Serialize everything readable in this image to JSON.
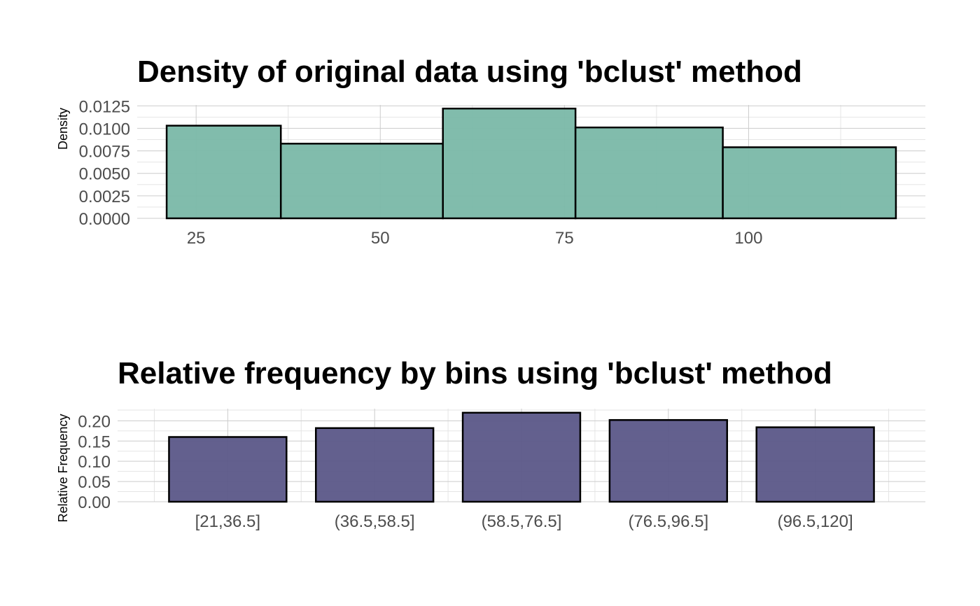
{
  "colors": {
    "density_fill": "#7ab8a8",
    "freq_fill": "#5b5788",
    "outline": "#000000"
  },
  "chart_data": [
    {
      "type": "bar",
      "title": "Density of original data using 'bclust' method",
      "xlabel": "",
      "ylabel": "Density",
      "bins": [
        {
          "from": 21,
          "to": 36.5,
          "density": 0.0103
        },
        {
          "from": 36.5,
          "to": 58.5,
          "density": 0.0083
        },
        {
          "from": 58.5,
          "to": 76.5,
          "density": 0.0122
        },
        {
          "from": 76.5,
          "to": 96.5,
          "density": 0.0101
        },
        {
          "from": 96.5,
          "to": 120,
          "density": 0.0079
        }
      ],
      "xlim": [
        17,
        124
      ],
      "ylim": [
        0,
        0.0126
      ],
      "x_ticks": [
        25,
        50,
        75,
        100
      ],
      "x_tick_labels": [
        "25",
        "50",
        "75",
        "100"
      ],
      "x_minor_ticks": [
        37.5,
        62.5,
        87.5,
        112.5
      ],
      "y_ticks": [
        0,
        0.0025,
        0.005,
        0.0075,
        0.01,
        0.0125
      ],
      "y_tick_labels": [
        "0.0000",
        "0.0025",
        "0.0050",
        "0.0075",
        "0.0100",
        "0.0125"
      ],
      "grid": true
    },
    {
      "type": "bar",
      "title": "Relative frequency by bins using 'bclust' method",
      "xlabel": "",
      "ylabel": "Relative Frequency",
      "categories": [
        "[21,36.5]",
        "(36.5,58.5]",
        "(58.5,76.5]",
        "(76.5,96.5]",
        "(96.5,120]"
      ],
      "values": [
        0.16,
        0.182,
        0.22,
        0.202,
        0.184
      ],
      "ylim": [
        0,
        0.23
      ],
      "y_ticks": [
        0,
        0.05,
        0.1,
        0.15,
        0.2
      ],
      "y_tick_labels": [
        "0.00",
        "0.05",
        "0.10",
        "0.15",
        "0.20"
      ],
      "grid": true
    }
  ]
}
